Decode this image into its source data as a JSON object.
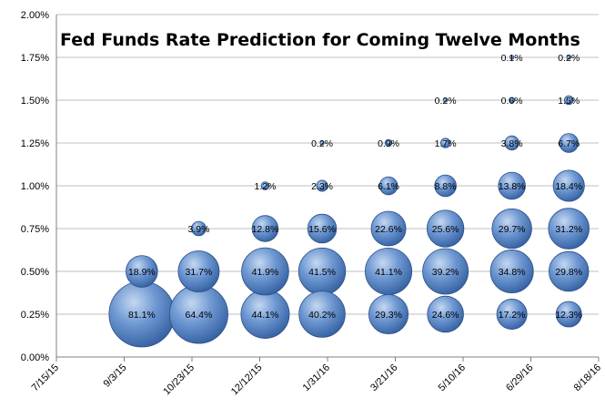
{
  "chart_data": {
    "type": "bubble",
    "title": "Fed Funds Rate Prediction for Coming Twelve Months",
    "xlabel": "",
    "ylabel": "",
    "x_ticks": [
      "7/15/15",
      "9/3/15",
      "10/23/15",
      "12/12/15",
      "1/31/16",
      "3/21/16",
      "5/10/16",
      "6/29/16",
      "8/18/16"
    ],
    "x_tick_days": [
      0,
      50,
      100,
      150,
      200,
      250,
      300,
      350,
      400
    ],
    "y_ticks": [
      "0.00%",
      "0.25%",
      "0.50%",
      "0.75%",
      "1.00%",
      "1.25%",
      "1.50%",
      "1.75%",
      "2.00%"
    ],
    "ylim": [
      0,
      2.0
    ],
    "grid": "horizontal",
    "colors": {
      "bubble": "#4f81bd",
      "bubble_edge": "#2c4f86",
      "grid": "#bfbfbf"
    },
    "points": [
      {
        "date": "9/16/15",
        "rate": 0.25,
        "pct": 81.1,
        "label": "81.1%"
      },
      {
        "date": "9/16/15",
        "rate": 0.5,
        "pct": 18.9,
        "label": "18.9%"
      },
      {
        "date": "10/28/15",
        "rate": 0.25,
        "pct": 64.4,
        "label": "64.4%"
      },
      {
        "date": "10/28/15",
        "rate": 0.5,
        "pct": 31.7,
        "label": "31.7%"
      },
      {
        "date": "10/28/15",
        "rate": 0.75,
        "pct": 3.9,
        "label": "3.9%"
      },
      {
        "date": "12/16/15",
        "rate": 0.25,
        "pct": 44.1,
        "label": "44.1%"
      },
      {
        "date": "12/16/15",
        "rate": 0.5,
        "pct": 41.9,
        "label": "41.9%"
      },
      {
        "date": "12/16/15",
        "rate": 0.75,
        "pct": 12.8,
        "label": "12.8%"
      },
      {
        "date": "12/16/15",
        "rate": 1.0,
        "pct": 1.2,
        "label": "1.2%"
      },
      {
        "date": "1/27/16",
        "rate": 0.25,
        "pct": 40.2,
        "label": "40.2%"
      },
      {
        "date": "1/27/16",
        "rate": 0.5,
        "pct": 41.5,
        "label": "41.5%"
      },
      {
        "date": "1/27/16",
        "rate": 0.75,
        "pct": 15.6,
        "label": "15.6%"
      },
      {
        "date": "1/27/16",
        "rate": 1.0,
        "pct": 2.3,
        "label": "2.3%"
      },
      {
        "date": "1/27/16",
        "rate": 1.25,
        "pct": 0.2,
        "label": "0.2%"
      },
      {
        "date": "3/16/16",
        "rate": 0.25,
        "pct": 29.3,
        "label": "29.3%"
      },
      {
        "date": "3/16/16",
        "rate": 0.5,
        "pct": 41.1,
        "label": "41.1%"
      },
      {
        "date": "3/16/16",
        "rate": 0.75,
        "pct": 22.6,
        "label": "22.6%"
      },
      {
        "date": "3/16/16",
        "rate": 1.0,
        "pct": 6.1,
        "label": "6.1%"
      },
      {
        "date": "3/16/16",
        "rate": 1.25,
        "pct": 0.9,
        "label": "0.9%"
      },
      {
        "date": "4/27/16",
        "rate": 0.25,
        "pct": 24.6,
        "label": "24.6%"
      },
      {
        "date": "4/27/16",
        "rate": 0.5,
        "pct": 39.2,
        "label": "39.2%"
      },
      {
        "date": "4/27/16",
        "rate": 0.75,
        "pct": 25.6,
        "label": "25.6%"
      },
      {
        "date": "4/27/16",
        "rate": 1.0,
        "pct": 8.8,
        "label": "8.8%"
      },
      {
        "date": "4/27/16",
        "rate": 1.25,
        "pct": 1.7,
        "label": "1.7%"
      },
      {
        "date": "4/27/16",
        "rate": 1.5,
        "pct": 0.2,
        "label": "0.2%"
      },
      {
        "date": "6/15/16",
        "rate": 0.25,
        "pct": 17.2,
        "label": "17.2%"
      },
      {
        "date": "6/15/16",
        "rate": 0.5,
        "pct": 34.8,
        "label": "34.8%"
      },
      {
        "date": "6/15/16",
        "rate": 0.75,
        "pct": 29.7,
        "label": "29.7%"
      },
      {
        "date": "6/15/16",
        "rate": 1.0,
        "pct": 13.8,
        "label": "13.8%"
      },
      {
        "date": "6/15/16",
        "rate": 1.25,
        "pct": 3.8,
        "label": "3.8%"
      },
      {
        "date": "6/15/16",
        "rate": 1.5,
        "pct": 0.6,
        "label": "0.6%"
      },
      {
        "date": "6/15/16",
        "rate": 1.75,
        "pct": 0.1,
        "label": "0.1%"
      },
      {
        "date": "7/27/16",
        "rate": 0.25,
        "pct": 12.3,
        "label": "12.3%"
      },
      {
        "date": "7/27/16",
        "rate": 0.5,
        "pct": 29.8,
        "label": "29.8%"
      },
      {
        "date": "7/27/16",
        "rate": 0.75,
        "pct": 31.2,
        "label": "31.2%"
      },
      {
        "date": "7/27/16",
        "rate": 1.0,
        "pct": 18.4,
        "label": "18.4%"
      },
      {
        "date": "7/27/16",
        "rate": 1.25,
        "pct": 6.7,
        "label": "6.7%"
      },
      {
        "date": "7/27/16",
        "rate": 1.5,
        "pct": 1.5,
        "label": "1.5%"
      },
      {
        "date": "7/27/16",
        "rate": 1.75,
        "pct": 0.2,
        "label": "0.2%"
      }
    ]
  }
}
